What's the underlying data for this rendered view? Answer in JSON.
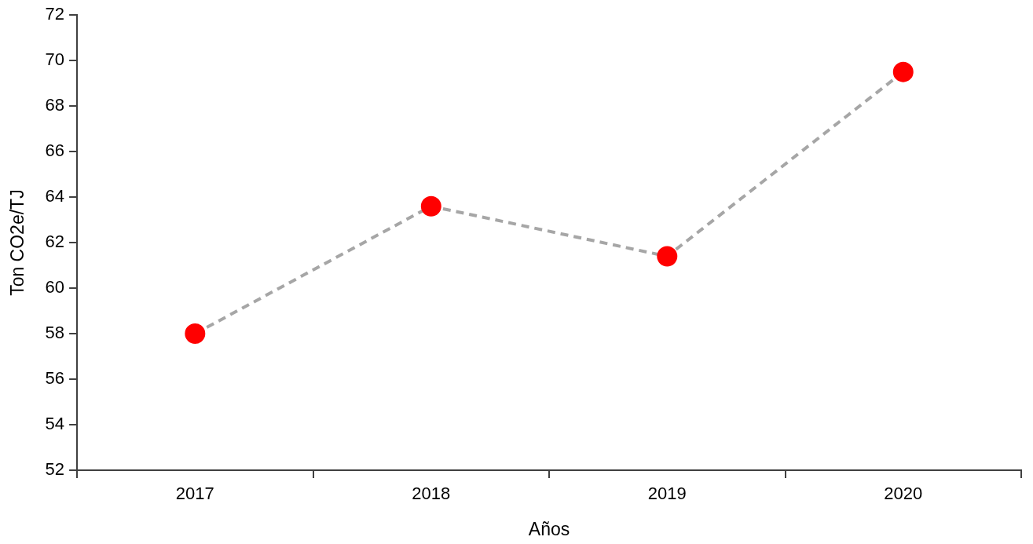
{
  "chart_data": {
    "type": "line",
    "categories": [
      "2017",
      "2018",
      "2019",
      "2020"
    ],
    "values": [
      58.0,
      63.6,
      61.4,
      69.5
    ],
    "color": "#a6a6a6",
    "colors": [
      "#ff0000",
      "#ff0000",
      "#ff0000",
      "#ff0000"
    ],
    "xlabel": "Años",
    "ylabel": "Ton CO2e/TJ",
    "ylim": [
      52,
      72
    ],
    "yticks": [
      52,
      54,
      56,
      58,
      60,
      62,
      64,
      66,
      68,
      70,
      72
    ],
    "grid": false,
    "legend": false,
    "marker": "circle",
    "line_style": "dashed"
  }
}
